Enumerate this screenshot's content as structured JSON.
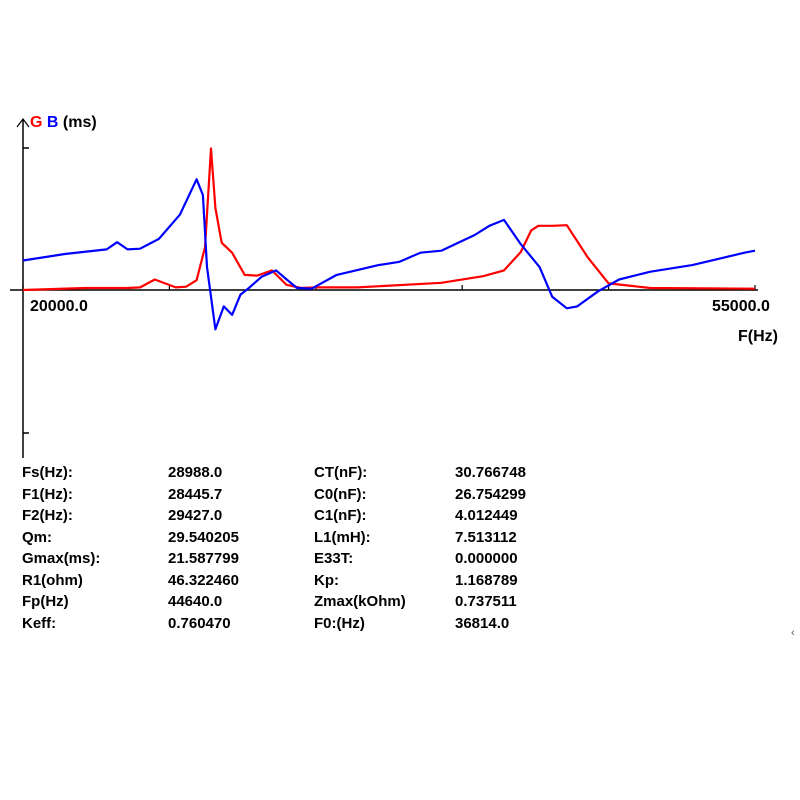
{
  "chart_data": {
    "type": "line",
    "legend": [
      {
        "label": "G",
        "color": "#ff0000"
      },
      {
        "label": "B",
        "color": "#0000ff"
      }
    ],
    "y_unit": "(ms)",
    "xlabel": "F(Hz)",
    "xlim": [
      20000.0,
      55000.0
    ],
    "x_min_label": "20000.0",
    "x_max_label": "55000.0",
    "ylim": [
      -16,
      20
    ],
    "grid": false,
    "series": [
      {
        "name": "G",
        "color": "#ff0000",
        "x": [
          20000,
          23000,
          25000,
          25600,
          26300,
          27300,
          27800,
          28300,
          28700,
          28988,
          29200,
          29500,
          30000,
          30600,
          31200,
          31900,
          32600,
          33300,
          34000,
          36000,
          40000,
          42000,
          43000,
          43800,
          44300,
          44640,
          45300,
          46000,
          47000,
          48000,
          50000,
          55000
        ],
        "values": [
          0.0,
          0.3,
          0.3,
          0.4,
          1.6,
          0.4,
          0.5,
          1.5,
          6.5,
          21.6,
          12.5,
          7.2,
          5.7,
          2.3,
          2.2,
          3.0,
          0.8,
          0.3,
          0.4,
          0.4,
          1.1,
          2.1,
          3.0,
          5.8,
          9.1,
          9.8,
          9.8,
          9.9,
          5.0,
          1.0,
          0.3,
          0.2
        ]
      },
      {
        "name": "B",
        "color": "#0000ff",
        "x": [
          20000,
          22000,
          24000,
          24500,
          25000,
          25600,
          26500,
          27500,
          28300,
          28600,
          28800,
          29200,
          29600,
          30000,
          30400,
          30800,
          31400,
          32100,
          32500,
          33100,
          33800,
          35000,
          37000,
          38000,
          39000,
          40000,
          41000,
          41600,
          42300,
          43000,
          43800,
          44700,
          45300,
          46000,
          46500,
          47500,
          48500,
          50000,
          52000,
          54500,
          55000
        ],
        "values": [
          4.5,
          5.5,
          6.2,
          7.3,
          6.2,
          6.3,
          7.8,
          11.5,
          16.9,
          14.5,
          3.5,
          -6.0,
          -2.5,
          -3.8,
          -0.7,
          0.3,
          2.0,
          3.0,
          1.9,
          0.3,
          0.2,
          2.3,
          3.8,
          4.3,
          5.7,
          6.0,
          7.5,
          8.4,
          9.8,
          10.7,
          7.0,
          3.5,
          -1.0,
          -2.8,
          -2.5,
          -0.2,
          1.6,
          2.8,
          3.8,
          5.7,
          6.0
        ]
      }
    ]
  },
  "parameters": [
    {
      "name": "Fs(Hz):",
      "value": "28988.0",
      "name2": "CT(nF):",
      "value2": "30.766748"
    },
    {
      "name": "F1(Hz):",
      "value": "28445.7",
      "name2": "C0(nF):",
      "value2": "26.754299"
    },
    {
      "name": "F2(Hz):",
      "value": "29427.0",
      "name2": "C1(nF):",
      "value2": "4.012449"
    },
    {
      "name": "Qm:",
      "value": "29.540205",
      "name2": "L1(mH):",
      "value2": "7.513112"
    },
    {
      "name": "Gmax(ms):",
      "value": "21.587799",
      "name2": "E33T:",
      "value2": "0.000000"
    },
    {
      "name": "R1(ohm)",
      "value": "46.322460",
      "name2": "Kp:",
      "value2": "1.168789"
    },
    {
      "name": "Fp(Hz)",
      "value": "44640.0",
      "name2": "Zmax(kOhm)",
      "value2": "0.737511"
    },
    {
      "name": "Keff:",
      "value": "0.760470",
      "name2": "F0:(Hz)",
      "value2": "36814.0"
    }
  ]
}
